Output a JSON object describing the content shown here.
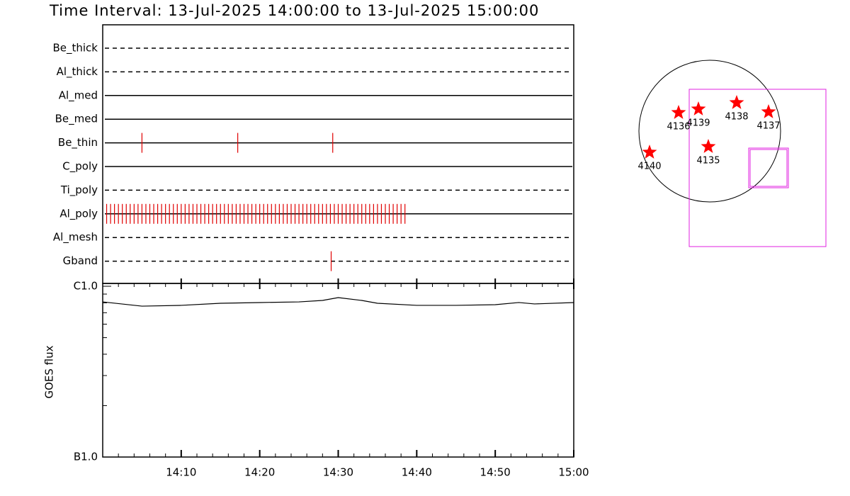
{
  "title": "Time Interval: 13-Jul-2025 14:00:00 to 13-Jul-2025 15:00:00",
  "chart_data": [
    {
      "type": "timeline",
      "xlim": [
        0,
        60
      ],
      "color": "#e00000",
      "filters": [
        {
          "name": "Be_thick",
          "style": "dashed",
          "events": []
        },
        {
          "name": "Al_thick",
          "style": "dashed",
          "events": []
        },
        {
          "name": "Al_med",
          "style": "solid",
          "events": []
        },
        {
          "name": "Be_med",
          "style": "solid",
          "events": []
        },
        {
          "name": "Be_thin",
          "style": "solid",
          "events": [
            5,
            17.2,
            29.3
          ]
        },
        {
          "name": "C_poly",
          "style": "solid",
          "events": []
        },
        {
          "name": "Ti_poly",
          "style": "dashed",
          "events": []
        },
        {
          "name": "Al_poly",
          "style": "solid",
          "events": [
            0.5,
            1,
            1.5,
            2,
            2.5,
            3,
            3.5,
            4,
            4.5,
            5,
            5.5,
            6,
            6.5,
            7,
            7.5,
            8,
            8.5,
            9,
            9.5,
            10,
            10.5,
            11,
            11.5,
            12,
            12.5,
            13,
            13.5,
            14,
            14.5,
            15,
            15.5,
            16,
            16.5,
            17,
            17.5,
            18,
            18.5,
            19,
            19.5,
            20,
            20.5,
            21,
            21.5,
            22,
            22.5,
            23,
            23.5,
            24,
            24.5,
            25,
            25.5,
            26,
            26.5,
            27,
            27.5,
            28,
            28.5,
            29,
            29.5,
            30,
            30.5,
            31,
            31.5,
            32,
            32.5,
            33,
            33.5,
            34,
            34.5,
            35,
            35.5,
            36,
            36.5,
            37,
            37.5,
            38,
            38.5
          ]
        },
        {
          "name": "Al_mesh",
          "style": "dashed",
          "events": []
        },
        {
          "name": "Gband",
          "style": "dashed",
          "events": [
            29.1
          ]
        }
      ]
    },
    {
      "type": "line",
      "y_label": "GOES flux",
      "log_y": true,
      "color": "#000000",
      "xlim": [
        0,
        60
      ],
      "xticks": [
        {
          "value": 10,
          "label": "14:10"
        },
        {
          "value": 20,
          "label": "14:20"
        },
        {
          "value": 30,
          "label": "14:30"
        },
        {
          "value": 40,
          "label": "14:40"
        },
        {
          "value": 50,
          "label": "14:50"
        },
        {
          "value": 60,
          "label": "15:00"
        }
      ],
      "ylim": [
        1e-07,
        1e-06
      ],
      "yticks": [
        {
          "value": 1e-07,
          "label": "B1.0"
        },
        {
          "value": 1e-06,
          "label": "C1.0"
        }
      ],
      "x": [
        0,
        5,
        10,
        15,
        20,
        25,
        28,
        30,
        33,
        35,
        40,
        45,
        50,
        53,
        55,
        60
      ],
      "values": [
        8.1e-07,
        7.65e-07,
        7.73e-07,
        7.95e-07,
        8.03e-07,
        8.1e-07,
        8.26e-07,
        8.58e-07,
        8.26e-07,
        7.95e-07,
        7.73e-07,
        7.73e-07,
        7.8e-07,
        8.03e-07,
        7.88e-07,
        8.03e-07
      ]
    }
  ],
  "map": {
    "regions": [
      "4136",
      "4139",
      "4138",
      "4137",
      "4135",
      "4140"
    ],
    "star_color": "#ff0000",
    "box_color": "#e020e0"
  }
}
